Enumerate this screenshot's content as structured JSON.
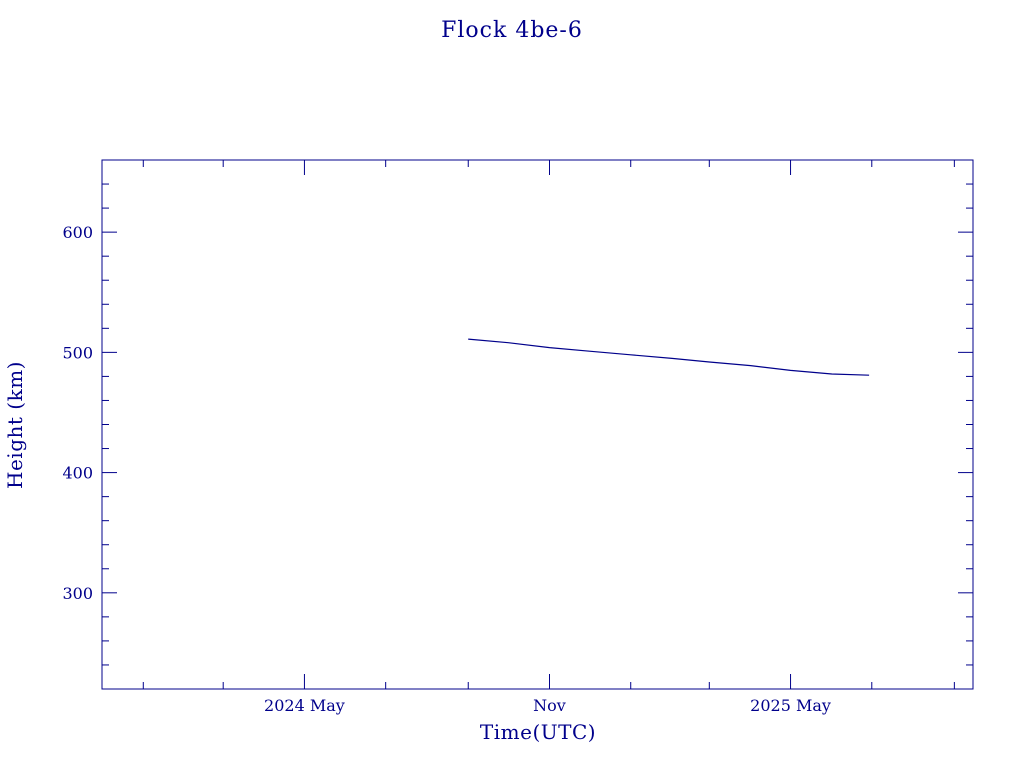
{
  "chart_data": {
    "type": "line",
    "title": "Flock 4be-6",
    "xlabel": "Time(UTC)",
    "ylabel": "Height (km)",
    "x_tick_labels": [
      "2024 May",
      "Nov",
      "2025 May"
    ],
    "y_ticks": [
      300,
      400,
      500,
      600
    ],
    "xlim": [
      "2023-12-01",
      "2025-09-15"
    ],
    "ylim": [
      220,
      660
    ],
    "grid": false,
    "color": "#00008b",
    "series": [
      {
        "x": [
          "2024-09-01",
          "2024-10-01",
          "2024-11-01",
          "2024-12-01",
          "2025-01-01",
          "2025-02-01",
          "2025-03-01",
          "2025-04-01",
          "2025-05-01",
          "2025-06-01",
          "2025-06-29"
        ],
        "y": [
          511,
          508,
          504,
          501,
          498,
          495,
          492,
          489,
          485,
          482,
          481
        ]
      }
    ]
  }
}
